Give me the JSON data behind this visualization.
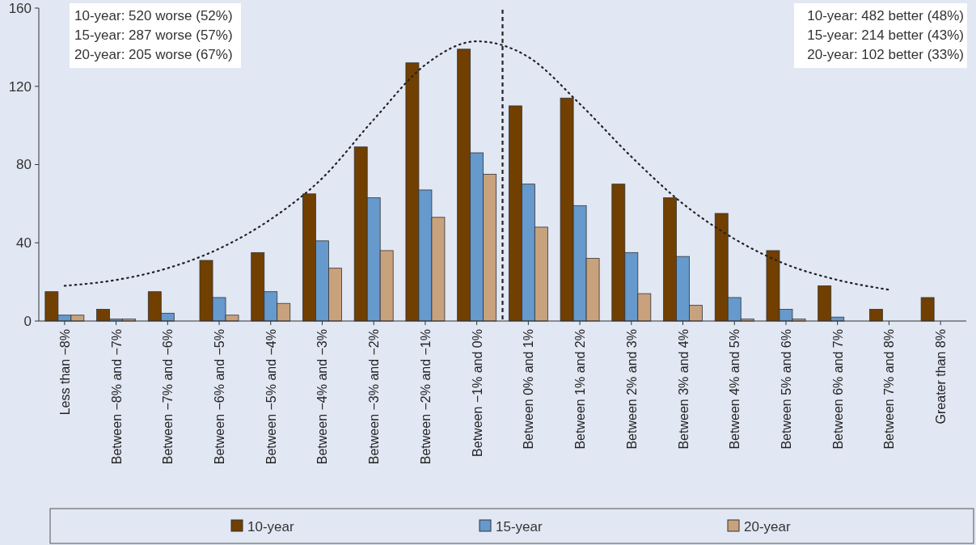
{
  "chart_data": {
    "type": "bar",
    "categories": [
      "Less than −8%",
      "Between −8% and −7%",
      "Between −7% and −6%",
      "Between −6% and −5%",
      "Between −5% and −4%",
      "Between −4% and −3%",
      "Between −3% and −2%",
      "Between −2% and −1%",
      "Between −1% and  0%",
      "Between 0% and 1%",
      "Between 1% and 2%",
      "Between 2% and 3%",
      "Between 3% and 4%",
      "Between 4% and 5%",
      "Between 5% and 6%",
      "Between 6% and 7%",
      "Between 7% and 8%",
      "Greater than 8%"
    ],
    "series": [
      {
        "name": "10-year",
        "color": "#713f00",
        "values": [
          15,
          6,
          15,
          31,
          35,
          65,
          89,
          132,
          139,
          110,
          114,
          70,
          63,
          55,
          36,
          18,
          6,
          12
        ]
      },
      {
        "name": "15-year",
        "color": "#6699cc",
        "values": [
          3,
          1,
          4,
          12,
          15,
          41,
          63,
          67,
          86,
          70,
          59,
          35,
          33,
          12,
          6,
          2,
          0,
          0
        ]
      },
      {
        "name": "20-year",
        "color": "#c8a27c",
        "values": [
          3,
          1,
          0,
          3,
          9,
          27,
          36,
          53,
          75,
          48,
          32,
          14,
          8,
          1,
          1,
          0,
          0,
          0
        ]
      },
      {
        "type": "line",
        "color": "#222222",
        "line_style": "dotted",
        "marker": "none",
        "values": [
          18,
          21,
          27,
          37,
          52,
          73,
          103,
          131,
          143,
          135,
          111,
          84,
          60,
          42,
          29,
          21,
          16,
          null
        ]
      }
    ],
    "ylim": [
      0,
      160
    ],
    "yticks": [
      0,
      40,
      80,
      120,
      160
    ],
    "grid": false,
    "legend": "bottom",
    "annotations": [
      "10-year: 520 worse (52%)",
      "15-year: 287 worse (57%)",
      "20-year: 205 worse (67%)",
      "10-year: 482 better (48%)",
      "15-year: 214 better (43%)",
      "20-year: 102 better (33%)"
    ]
  }
}
